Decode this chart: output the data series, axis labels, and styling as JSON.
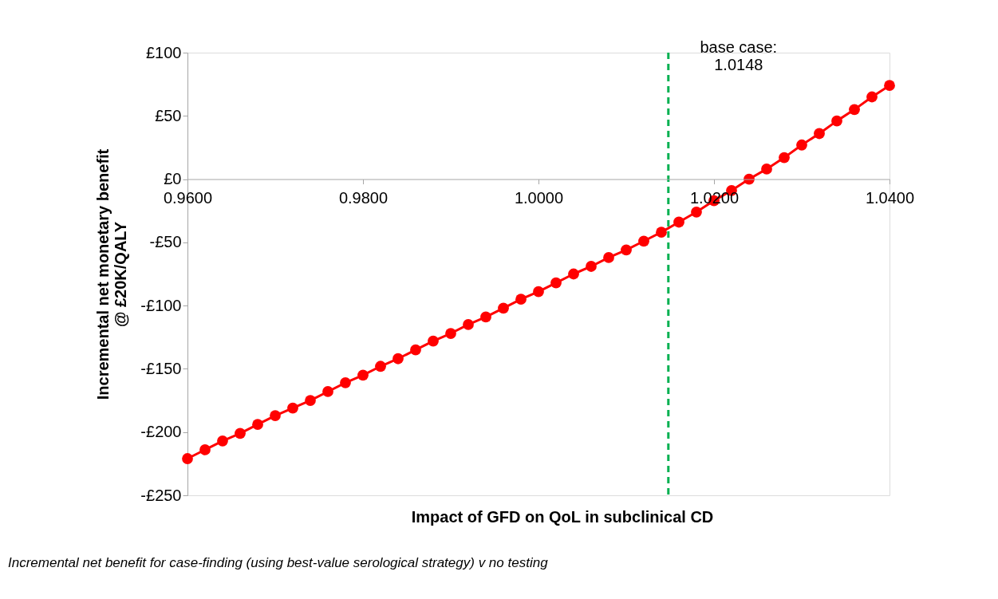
{
  "chart_data": {
    "type": "line",
    "xlabel": "Impact of GFD on QoL in subclinical CD",
    "ylabel": "Incremental net monetary benefit\n@ £20K/QALY",
    "x": [
      0.96,
      0.962,
      0.964,
      0.966,
      0.968,
      0.97,
      0.972,
      0.974,
      0.976,
      0.978,
      0.98,
      0.982,
      0.984,
      0.986,
      0.988,
      0.99,
      0.992,
      0.994,
      0.996,
      0.998,
      1.0,
      1.002,
      1.004,
      1.006,
      1.008,
      1.01,
      1.012,
      1.014,
      1.016,
      1.018,
      1.02,
      1.022,
      1.024,
      1.026,
      1.028,
      1.03,
      1.032,
      1.034,
      1.036,
      1.038,
      1.04
    ],
    "series": [
      {
        "color": "#ff0000",
        "values": [
          -221,
          -214,
          -207,
          -201,
          -194,
          -187,
          -181,
          -175,
          -168,
          -161,
          -155,
          -148,
          -142,
          -135,
          -128,
          -122,
          -115,
          -109,
          -102,
          -95,
          -89,
          -82,
          -75,
          -69,
          -62,
          -56,
          -49,
          -42,
          -34,
          -26,
          -17,
          -9,
          0,
          8,
          17,
          27,
          36,
          46,
          55,
          65,
          74
        ]
      }
    ],
    "marker": "circle",
    "line_style": "solid",
    "xlim": [
      0.96,
      1.04
    ],
    "xticks": [
      {
        "value": 0.96,
        "label": "0.9600"
      },
      {
        "value": 0.98,
        "label": "0.9800"
      },
      {
        "value": 1.0,
        "label": "1.0000"
      },
      {
        "value": 1.02,
        "label": "1.0200"
      },
      {
        "value": 1.04,
        "label": "1.0400"
      }
    ],
    "ylim": [
      -250,
      100
    ],
    "yticks": [
      {
        "value": -250,
        "label": "-£250"
      },
      {
        "value": -200,
        "label": "-£200"
      },
      {
        "value": -150,
        "label": "-£150"
      },
      {
        "value": -100,
        "label": "-£100"
      },
      {
        "value": -50,
        "label": "-£50"
      },
      {
        "value": 0,
        "label": "£0"
      },
      {
        "value": 50,
        "label": "£50"
      },
      {
        "value": 100,
        "label": "£100"
      }
    ],
    "ref_lines": [
      {
        "axis": "x",
        "value": 1.0148,
        "label": "base case:\n1.0148",
        "color": "#00b050",
        "line_style": "dashed"
      }
    ],
    "grid": false,
    "annotations": [
      "Incremental net benefit for case-finding (using best-value serological strategy) v no testing"
    ]
  }
}
